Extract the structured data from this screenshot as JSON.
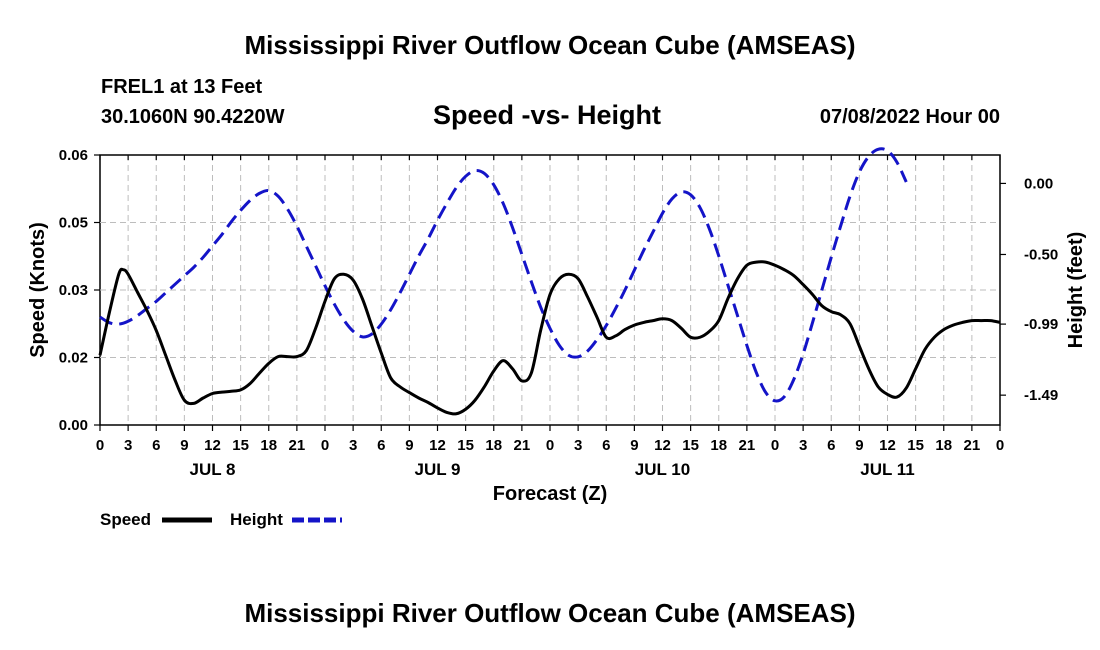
{
  "header": {
    "title": "Mississippi River Outflow Ocean Cube (AMSEAS)",
    "station": "FREL1 at 13 Feet",
    "coordinates": "30.1060N  90.4220W",
    "subtitle": "Speed -vs- Height",
    "datetime": "07/08/2022 Hour 00"
  },
  "footer": {
    "title": "Mississippi River Outflow Ocean Cube (AMSEAS)"
  },
  "chart_data": {
    "type": "line",
    "title": "Speed -vs- Height",
    "xlabel": "Forecast (Z)",
    "ylabel_left": "Speed (Knots)",
    "ylabel_right": "Height (feet)",
    "x_range": [
      0,
      96
    ],
    "x_unit": "hours from 07/08/2022 00Z",
    "x_ticks": [
      {
        "h": 0,
        "label": "0"
      },
      {
        "h": 3,
        "label": "3"
      },
      {
        "h": 6,
        "label": "6"
      },
      {
        "h": 9,
        "label": "9"
      },
      {
        "h": 12,
        "label": "12"
      },
      {
        "h": 15,
        "label": "15"
      },
      {
        "h": 18,
        "label": "18"
      },
      {
        "h": 21,
        "label": "21"
      },
      {
        "h": 24,
        "label": "0"
      },
      {
        "h": 27,
        "label": "3"
      },
      {
        "h": 30,
        "label": "6"
      },
      {
        "h": 33,
        "label": "9"
      },
      {
        "h": 36,
        "label": "12"
      },
      {
        "h": 39,
        "label": "15"
      },
      {
        "h": 42,
        "label": "18"
      },
      {
        "h": 45,
        "label": "21"
      },
      {
        "h": 48,
        "label": "0"
      },
      {
        "h": 51,
        "label": "3"
      },
      {
        "h": 54,
        "label": "6"
      },
      {
        "h": 57,
        "label": "9"
      },
      {
        "h": 60,
        "label": "12"
      },
      {
        "h": 63,
        "label": "15"
      },
      {
        "h": 66,
        "label": "18"
      },
      {
        "h": 69,
        "label": "21"
      },
      {
        "h": 72,
        "label": "0"
      },
      {
        "h": 75,
        "label": "3"
      },
      {
        "h": 78,
        "label": "6"
      },
      {
        "h": 81,
        "label": "9"
      },
      {
        "h": 84,
        "label": "12"
      },
      {
        "h": 87,
        "label": "15"
      },
      {
        "h": 90,
        "label": "18"
      },
      {
        "h": 93,
        "label": "21"
      },
      {
        "h": 96,
        "label": "0"
      }
    ],
    "day_labels": [
      {
        "h": 12,
        "label": "JUL 8"
      },
      {
        "h": 36,
        "label": "JUL 9"
      },
      {
        "h": 60,
        "label": "JUL 10"
      },
      {
        "h": 84,
        "label": "JUL 11"
      }
    ],
    "y_left": {
      "range": [
        0,
        0.06
      ],
      "ticks": [
        {
          "v": 0,
          "label": "0.00"
        },
        {
          "v": 0.015,
          "label": "0.02"
        },
        {
          "v": 0.03,
          "label": "0.03"
        },
        {
          "v": 0.045,
          "label": "0.05"
        },
        {
          "v": 0.06,
          "label": "0.06"
        }
      ]
    },
    "y_right": {
      "range": [
        -1.7,
        0.2
      ],
      "ticks": [
        {
          "v": 0,
          "label": "0.00"
        },
        {
          "v": -0.5,
          "label": "-0.50"
        },
        {
          "v": -0.99,
          "label": "-0.99"
        },
        {
          "v": -1.49,
          "label": "-1.49"
        }
      ]
    },
    "series": [
      {
        "name": "Speed",
        "axis": "left",
        "color": "#000000",
        "style": "solid",
        "points": [
          [
            0,
            0.0155
          ],
          [
            1,
            0.025
          ],
          [
            2,
            0.0335
          ],
          [
            2.5,
            0.0345
          ],
          [
            3,
            0.0335
          ],
          [
            4,
            0.0295
          ],
          [
            5,
            0.0255
          ],
          [
            6,
            0.021
          ],
          [
            7,
            0.0155
          ],
          [
            8,
            0.01
          ],
          [
            9,
            0.0055
          ],
          [
            10,
            0.0048
          ],
          [
            11,
            0.006
          ],
          [
            12,
            0.007
          ],
          [
            13,
            0.0073
          ],
          [
            14,
            0.0075
          ],
          [
            15,
            0.0078
          ],
          [
            16,
            0.0092
          ],
          [
            17,
            0.0115
          ],
          [
            18,
            0.0137
          ],
          [
            19,
            0.0152
          ],
          [
            20,
            0.0152
          ],
          [
            21,
            0.0152
          ],
          [
            22,
            0.0165
          ],
          [
            23,
            0.0215
          ],
          [
            24,
            0.0275
          ],
          [
            25,
            0.0325
          ],
          [
            26,
            0.0335
          ],
          [
            27,
            0.0322
          ],
          [
            28,
            0.028
          ],
          [
            29,
            0.022
          ],
          [
            30,
            0.016
          ],
          [
            31,
            0.0105
          ],
          [
            32,
            0.0085
          ],
          [
            33,
            0.0072
          ],
          [
            34,
            0.006
          ],
          [
            35,
            0.005
          ],
          [
            36,
            0.0038
          ],
          [
            37,
            0.0028
          ],
          [
            38,
            0.0025
          ],
          [
            39,
            0.0035
          ],
          [
            40,
            0.0055
          ],
          [
            41,
            0.0085
          ],
          [
            42,
            0.012
          ],
          [
            43,
            0.0143
          ],
          [
            44,
            0.0125
          ],
          [
            45,
            0.0098
          ],
          [
            46,
            0.0115
          ],
          [
            47,
            0.021
          ],
          [
            48,
            0.029
          ],
          [
            49,
            0.0325
          ],
          [
            50,
            0.0335
          ],
          [
            51,
            0.0325
          ],
          [
            52,
            0.0285
          ],
          [
            53,
            0.024
          ],
          [
            54,
            0.0195
          ],
          [
            55,
            0.0198
          ],
          [
            56,
            0.0212
          ],
          [
            57,
            0.0222
          ],
          [
            58,
            0.0228
          ],
          [
            59,
            0.0232
          ],
          [
            60,
            0.0236
          ],
          [
            61,
            0.0232
          ],
          [
            62,
            0.0215
          ],
          [
            63,
            0.0195
          ],
          [
            64,
            0.0195
          ],
          [
            65,
            0.0208
          ],
          [
            66,
            0.0232
          ],
          [
            67,
            0.0282
          ],
          [
            68,
            0.0325
          ],
          [
            69,
            0.0355
          ],
          [
            70,
            0.0362
          ],
          [
            71,
            0.0362
          ],
          [
            72,
            0.0355
          ],
          [
            73,
            0.0345
          ],
          [
            74,
            0.0332
          ],
          [
            75,
            0.0312
          ],
          [
            76,
            0.029
          ],
          [
            77,
            0.0265
          ],
          [
            78,
            0.0252
          ],
          [
            79,
            0.0245
          ],
          [
            80,
            0.0225
          ],
          [
            81,
            0.0175
          ],
          [
            82,
            0.0125
          ],
          [
            83,
            0.0085
          ],
          [
            84,
            0.0068
          ],
          [
            85,
            0.0062
          ],
          [
            86,
            0.0082
          ],
          [
            87,
            0.0125
          ],
          [
            88,
            0.0168
          ],
          [
            89,
            0.0195
          ],
          [
            90,
            0.0212
          ],
          [
            91,
            0.0222
          ],
          [
            92,
            0.0228
          ],
          [
            93,
            0.0232
          ],
          [
            94,
            0.0232
          ],
          [
            95,
            0.0232
          ],
          [
            96,
            0.0228
          ]
        ]
      },
      {
        "name": "Height",
        "axis": "right",
        "color": "#1414c8",
        "style": "dashed",
        "points": [
          [
            0,
            -0.94
          ],
          [
            1,
            -0.98
          ],
          [
            2,
            -0.99
          ],
          [
            3,
            -0.97
          ],
          [
            4,
            -0.93
          ],
          [
            5,
            -0.88
          ],
          [
            6,
            -0.83
          ],
          [
            7,
            -0.77
          ],
          [
            8,
            -0.71
          ],
          [
            9,
            -0.65
          ],
          [
            10,
            -0.59
          ],
          [
            11,
            -0.52
          ],
          [
            12,
            -0.44
          ],
          [
            13,
            -0.36
          ],
          [
            14,
            -0.27
          ],
          [
            15,
            -0.19
          ],
          [
            16,
            -0.12
          ],
          [
            17,
            -0.07
          ],
          [
            18,
            -0.05
          ],
          [
            19,
            -0.09
          ],
          [
            20,
            -0.18
          ],
          [
            21,
            -0.3
          ],
          [
            22,
            -0.44
          ],
          [
            23,
            -0.58
          ],
          [
            24,
            -0.72
          ],
          [
            25,
            -0.85
          ],
          [
            26,
            -0.96
          ],
          [
            27,
            -1.04
          ],
          [
            28,
            -1.08
          ],
          [
            29,
            -1.06
          ],
          [
            30,
            -0.99
          ],
          [
            31,
            -0.89
          ],
          [
            32,
            -0.77
          ],
          [
            33,
            -0.64
          ],
          [
            34,
            -0.51
          ],
          [
            35,
            -0.39
          ],
          [
            36,
            -0.26
          ],
          [
            37,
            -0.14
          ],
          [
            38,
            -0.03
          ],
          [
            39,
            0.05
          ],
          [
            40,
            0.09
          ],
          [
            41,
            0.07
          ],
          [
            42,
            -0.01
          ],
          [
            43,
            -0.14
          ],
          [
            44,
            -0.31
          ],
          [
            45,
            -0.5
          ],
          [
            46,
            -0.69
          ],
          [
            47,
            -0.87
          ],
          [
            48,
            -1.02
          ],
          [
            49,
            -1.14
          ],
          [
            50,
            -1.21
          ],
          [
            51,
            -1.22
          ],
          [
            52,
            -1.18
          ],
          [
            53,
            -1.1
          ],
          [
            54,
            -1.0
          ],
          [
            55,
            -0.88
          ],
          [
            56,
            -0.75
          ],
          [
            57,
            -0.61
          ],
          [
            58,
            -0.47
          ],
          [
            59,
            -0.34
          ],
          [
            60,
            -0.21
          ],
          [
            61,
            -0.11
          ],
          [
            62,
            -0.06
          ],
          [
            63,
            -0.08
          ],
          [
            64,
            -0.17
          ],
          [
            65,
            -0.32
          ],
          [
            66,
            -0.51
          ],
          [
            67,
            -0.72
          ],
          [
            68,
            -0.93
          ],
          [
            69,
            -1.14
          ],
          [
            70,
            -1.33
          ],
          [
            71,
            -1.47
          ],
          [
            72,
            -1.53
          ],
          [
            73,
            -1.5
          ],
          [
            74,
            -1.38
          ],
          [
            75,
            -1.2
          ],
          [
            76,
            -0.98
          ],
          [
            77,
            -0.75
          ],
          [
            78,
            -0.52
          ],
          [
            79,
            -0.3
          ],
          [
            80,
            -0.09
          ],
          [
            81,
            0.08
          ],
          [
            82,
            0.19
          ],
          [
            83,
            0.24
          ],
          [
            84,
            0.23
          ],
          [
            85,
            0.15
          ],
          [
            86,
            0.01
          ]
        ]
      }
    ],
    "legend": [
      {
        "name": "Speed",
        "color": "#000000",
        "style": "solid"
      },
      {
        "name": "Height",
        "color": "#1414c8",
        "style": "dashed"
      }
    ]
  }
}
